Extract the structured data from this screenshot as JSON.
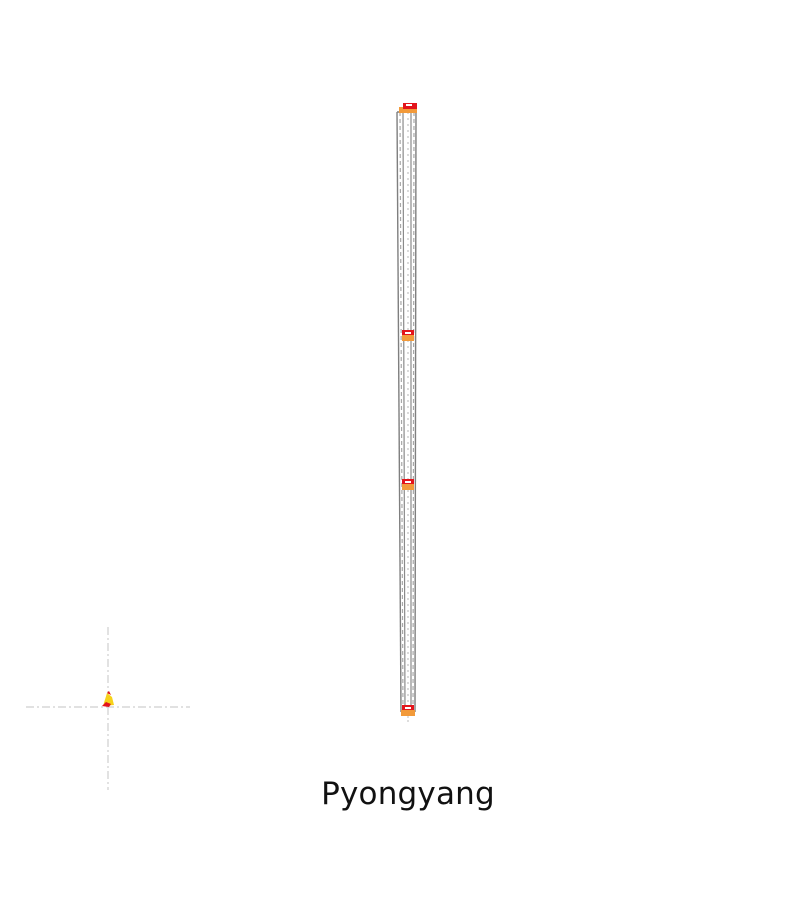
{
  "map": {
    "label": "Pyongyang",
    "colors": {
      "track": "#7f7f7f",
      "track_dash": "#a8a8a8",
      "station_red": "#e3141b",
      "station_orange": "#f29a3a",
      "crosshair": "#cfcfcf",
      "marker_yellow": "#f6d21a",
      "marker_red": "#e3141b"
    },
    "stations": [
      {
        "name": "terminus-north",
        "icon": "station-north-icon"
      },
      {
        "name": "station-upper",
        "icon": "station-upper-icon"
      },
      {
        "name": "station-middle",
        "icon": "station-middle-icon"
      },
      {
        "name": "terminus-south",
        "icon": "station-south-icon"
      }
    ],
    "marker_icon": "location-pin-icon"
  }
}
